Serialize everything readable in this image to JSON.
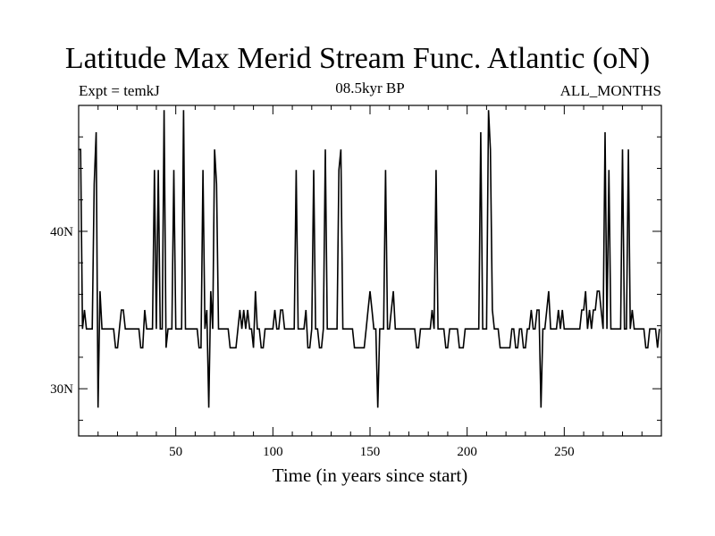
{
  "chart_data": {
    "type": "line",
    "title": "Latitude Max Merid Stream Func. Atlantic (oN)",
    "subtitle_left": "Expt = temkJ",
    "subtitle_center": "08.5kyr BP",
    "subtitle_right": "ALL_MONTHS",
    "xlabel": "Time (in years since start)",
    "ylabel": "",
    "xlim": [
      0,
      300
    ],
    "ylim": [
      27,
      48
    ],
    "x_ticks": [
      50,
      100,
      150,
      200,
      250
    ],
    "x_tick_labels": [
      "50",
      "100",
      "150",
      "200",
      "250"
    ],
    "y_ticks": [
      30,
      40
    ],
    "y_tick_labels": [
      "30N",
      "40N"
    ],
    "series": [
      {
        "name": "Latitude Max",
        "x_start": 0,
        "x_step": 1,
        "values": [
          45.2,
          45.2,
          33.8,
          35.0,
          33.8,
          33.8,
          33.8,
          33.8,
          43.0,
          46.3,
          28.8,
          36.2,
          33.8,
          33.8,
          33.8,
          33.8,
          33.8,
          33.8,
          33.8,
          32.6,
          32.6,
          33.8,
          35.0,
          35.0,
          33.8,
          33.8,
          33.8,
          33.8,
          33.8,
          33.8,
          33.8,
          33.8,
          32.6,
          32.6,
          35.0,
          33.8,
          33.8,
          33.8,
          33.8,
          43.9,
          33.8,
          43.9,
          33.8,
          33.8,
          47.7,
          32.6,
          33.8,
          33.8,
          33.8,
          43.9,
          33.8,
          33.8,
          33.8,
          33.8,
          47.7,
          33.8,
          33.8,
          33.8,
          33.8,
          33.8,
          33.8,
          33.8,
          32.6,
          32.6,
          43.9,
          33.8,
          35.0,
          28.8,
          36.2,
          33.8,
          45.2,
          43.0,
          33.8,
          33.8,
          33.8,
          33.8,
          33.8,
          33.8,
          32.6,
          32.6,
          32.6,
          32.6,
          33.8,
          35.0,
          33.8,
          35.0,
          33.8,
          35.0,
          33.8,
          33.8,
          32.6,
          36.2,
          33.8,
          33.8,
          32.6,
          32.6,
          33.8,
          33.8,
          33.8,
          33.8,
          33.8,
          35.0,
          33.8,
          33.8,
          35.0,
          35.0,
          33.8,
          33.8,
          33.8,
          33.8,
          33.8,
          33.8,
          43.9,
          33.8,
          33.8,
          33.8,
          33.8,
          35.0,
          32.6,
          32.6,
          33.8,
          43.9,
          33.8,
          33.8,
          32.6,
          32.6,
          33.8,
          45.2,
          33.8,
          33.8,
          33.8,
          33.8,
          33.8,
          33.8,
          43.9,
          45.2,
          33.8,
          33.8,
          33.8,
          33.8,
          33.8,
          33.8,
          32.6,
          32.6,
          32.6,
          32.6,
          32.6,
          32.6,
          33.8,
          35.0,
          36.2,
          35.0,
          33.8,
          33.8,
          28.8,
          33.8,
          33.8,
          33.8,
          43.9,
          33.8,
          33.8,
          35.0,
          36.2,
          33.8,
          33.8,
          33.8,
          33.8,
          33.8,
          33.8,
          33.8,
          33.8,
          33.8,
          33.8,
          33.8,
          32.6,
          32.6,
          33.8,
          33.8,
          33.8,
          33.8,
          33.8,
          33.8,
          35.0,
          33.8,
          43.9,
          33.8,
          33.8,
          33.8,
          33.8,
          32.6,
          32.6,
          33.8,
          33.8,
          33.8,
          33.8,
          33.8,
          32.6,
          32.6,
          32.6,
          33.8,
          33.8,
          33.8,
          33.8,
          33.8,
          33.8,
          33.8,
          33.8,
          46.3,
          33.8,
          33.8,
          33.8,
          47.7,
          45.2,
          35.0,
          33.8,
          33.8,
          33.8,
          32.6,
          32.6,
          32.6,
          32.6,
          32.6,
          32.6,
          33.8,
          33.8,
          32.6,
          32.6,
          33.8,
          33.8,
          32.6,
          32.6,
          33.8,
          33.8,
          35.0,
          33.8,
          33.8,
          35.0,
          35.0,
          28.8,
          33.8,
          33.8,
          35.0,
          36.2,
          33.8,
          33.8,
          33.8,
          33.8,
          35.0,
          33.8,
          35.0,
          33.8,
          33.8,
          33.8,
          33.8,
          33.8,
          33.8,
          33.8,
          33.8,
          33.8,
          35.0,
          35.0,
          36.2,
          33.8,
          35.0,
          33.8,
          35.0,
          35.0,
          36.2,
          36.2,
          35.0,
          33.8,
          46.3,
          33.8,
          43.9,
          33.8,
          33.8,
          33.8,
          33.8,
          33.8,
          33.8,
          45.2,
          33.8,
          33.8,
          45.2,
          33.8,
          35.0,
          33.8,
          33.8,
          33.8,
          33.8,
          33.8,
          33.8,
          32.6,
          32.6,
          33.8,
          33.8,
          33.8,
          33.8,
          32.6,
          33.8
        ]
      }
    ]
  }
}
